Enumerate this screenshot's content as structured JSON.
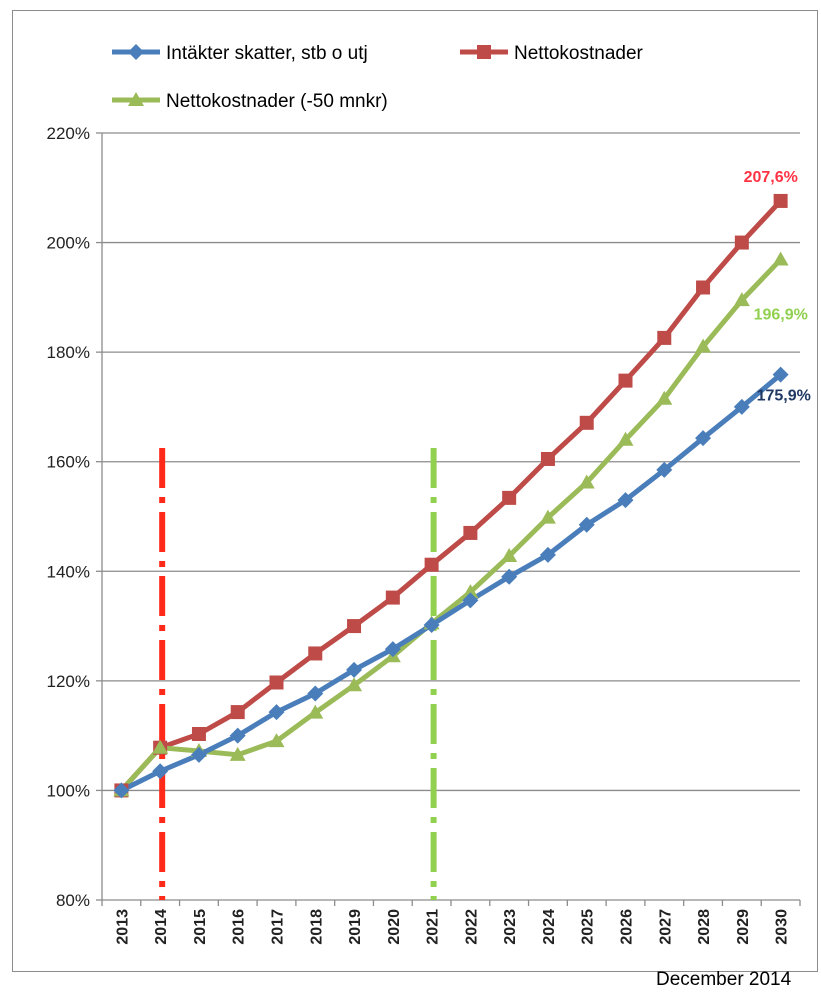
{
  "chart_data": {
    "type": "line",
    "x": [
      "2013",
      "2014",
      "2015",
      "2016",
      "2017",
      "2018",
      "2019",
      "2020",
      "2021",
      "2022",
      "2023",
      "2024",
      "2025",
      "2026",
      "2027",
      "2028",
      "2029",
      "2030"
    ],
    "ylim": [
      0.8,
      2.2
    ],
    "yticks": [
      "80%",
      "100%",
      "120%",
      "140%",
      "160%",
      "180%",
      "200%",
      "220%"
    ],
    "ytick_values": [
      0.8,
      1.0,
      1.2,
      1.4,
      1.6,
      1.8,
      2.0,
      2.2
    ],
    "grid": "horizontal",
    "legend_position": "top",
    "series": [
      {
        "name": "Intäkter skatter, stb o utj",
        "color": "#4a7ebb",
        "marker": "diamond",
        "values": [
          1.0,
          1.035,
          1.065,
          1.1,
          1.143,
          1.177,
          1.22,
          1.258,
          1.302,
          1.347,
          1.39,
          1.43,
          1.485,
          1.53,
          1.585,
          1.643,
          1.7,
          1.759
        ],
        "end_label": "175,9%",
        "end_label_color": "#1f3864"
      },
      {
        "name": "Nettokostnader",
        "color": "#be4b48",
        "marker": "square",
        "values": [
          1.0,
          1.078,
          1.103,
          1.143,
          1.197,
          1.25,
          1.3,
          1.352,
          1.412,
          1.47,
          1.534,
          1.605,
          1.671,
          1.748,
          1.826,
          1.918,
          2.0,
          2.076
        ],
        "end_label": "207,6%",
        "end_label_color": "#ff3344"
      },
      {
        "name": "Nettokostnader (-50 mnkr)",
        "color": "#9bbb59",
        "marker": "triangle",
        "values": [
          1.0,
          1.078,
          1.072,
          1.065,
          1.09,
          1.142,
          1.192,
          1.245,
          1.305,
          1.362,
          1.428,
          1.498,
          1.562,
          1.64,
          1.715,
          1.81,
          1.895,
          1.969
        ],
        "end_label": "196,9%",
        "end_label_color": "#92d050"
      }
    ],
    "vertical_markers": [
      {
        "x": "2014",
        "color": "#ff2a1a",
        "style": "dash-dot"
      },
      {
        "x": "2021",
        "color": "#92d050",
        "style": "dash-dot"
      }
    ]
  },
  "footer": "December 2014"
}
